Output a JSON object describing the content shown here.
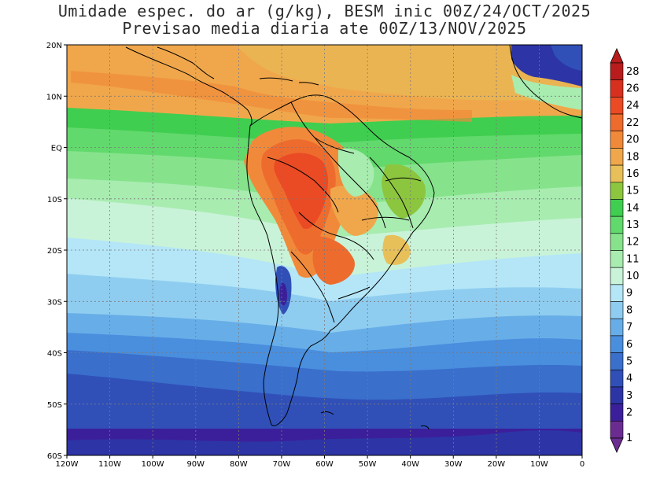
{
  "title_line1": "Umidade espec. do ar (g/kg), BESM inic 00Z/24/OCT/2025",
  "title_line2": "Previsao media diaria ate 00Z/13/NOV/2025",
  "lon_labels": [
    "120W",
    "110W",
    "100W",
    "90W",
    "80W",
    "70W",
    "60W",
    "50W",
    "40W",
    "30W",
    "20W",
    "10W",
    "0"
  ],
  "lat_labels": [
    "20N",
    "10N",
    "EQ",
    "10S",
    "20S",
    "30S",
    "40S",
    "50S",
    "60S"
  ],
  "colorbar": {
    "levels": [
      "1",
      "2",
      "3",
      "4",
      "5",
      "6",
      "7",
      "8",
      "9",
      "10",
      "11",
      "12",
      "13",
      "14",
      "15",
      "16",
      "18",
      "20",
      "22",
      "24",
      "26",
      "28"
    ],
    "colors": [
      "#6a2c91",
      "#3b1f9a",
      "#2d35a6",
      "#3050b8",
      "#3a6fcc",
      "#4a8ede",
      "#67aee8",
      "#8fcdf0",
      "#b4e6f7",
      "#c9f3d8",
      "#a8ecb0",
      "#86e38c",
      "#62d96c",
      "#3fce50",
      "#8cc63f",
      "#e8c05a",
      "#f0a74b",
      "#f08a3a",
      "#ee6b2e",
      "#ea4a24",
      "#d8301e",
      "#b81c1c"
    ]
  },
  "colors": {
    "land_border": "#000000",
    "grid": "#7a7a7a",
    "background": "#ffffff"
  }
}
